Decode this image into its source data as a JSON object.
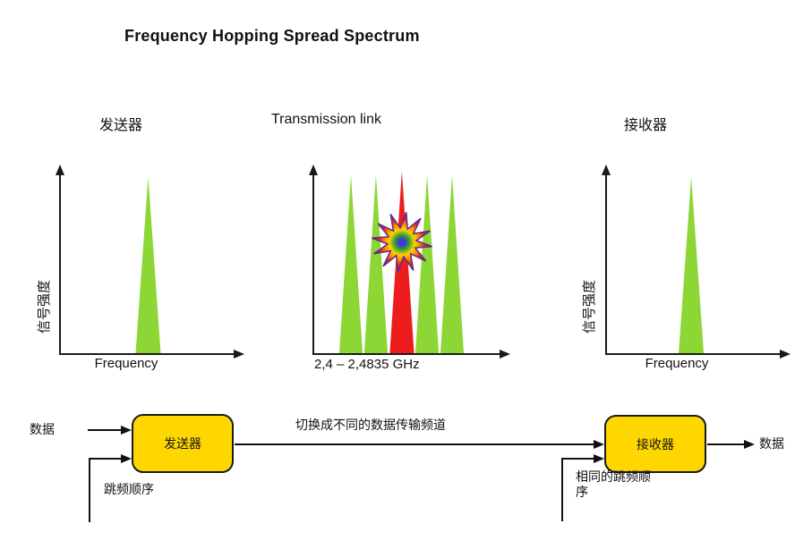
{
  "title": "Frequency Hopping Spread Spectrum",
  "colors": {
    "green": "#8CD636",
    "red": "#EE1D1D",
    "yellow": "#FFD700",
    "ink": "#111111"
  },
  "headers": {
    "transmitter": "发送器",
    "link": "Transmission link",
    "receiver": "接收器"
  },
  "chart_data": [
    {
      "type": "area",
      "id": "transmitter-spectrum",
      "ylabel": "信号强度",
      "xlabel": "Frequency",
      "peaks": [
        {
          "pos": 0.49,
          "width": 0.14,
          "height": 0.94,
          "color": "green"
        }
      ]
    },
    {
      "type": "area",
      "id": "link-spectrum",
      "xlabel": "2,4 – 2,4835 GHz",
      "annotation": "interference burst on center (red) channel",
      "peaks": [
        {
          "pos": 0.2,
          "width": 0.125,
          "height": 0.95,
          "color": "green"
        },
        {
          "pos": 0.333,
          "width": 0.125,
          "height": 0.95,
          "color": "green"
        },
        {
          "pos": 0.471,
          "width": 0.13,
          "height": 0.97,
          "color": "red"
        },
        {
          "pos": 0.605,
          "width": 0.125,
          "height": 0.95,
          "color": "green"
        },
        {
          "pos": 0.738,
          "width": 0.125,
          "height": 0.95,
          "color": "green"
        }
      ]
    },
    {
      "type": "area",
      "id": "receiver-spectrum",
      "ylabel": "信号强度",
      "xlabel": "Frequency",
      "peaks": [
        {
          "pos": 0.473,
          "width": 0.14,
          "height": 0.94,
          "color": "green"
        }
      ]
    }
  ],
  "block_diagram": {
    "data_in": "数据",
    "transmitter_box": "发送器",
    "hop_sequence": "跳频顺序",
    "channel_note": "切换成不同的数据传输频道",
    "receiver_box": "接收器",
    "same_hop_sequence": "相同的跳频顺序",
    "data_out": "数据"
  }
}
